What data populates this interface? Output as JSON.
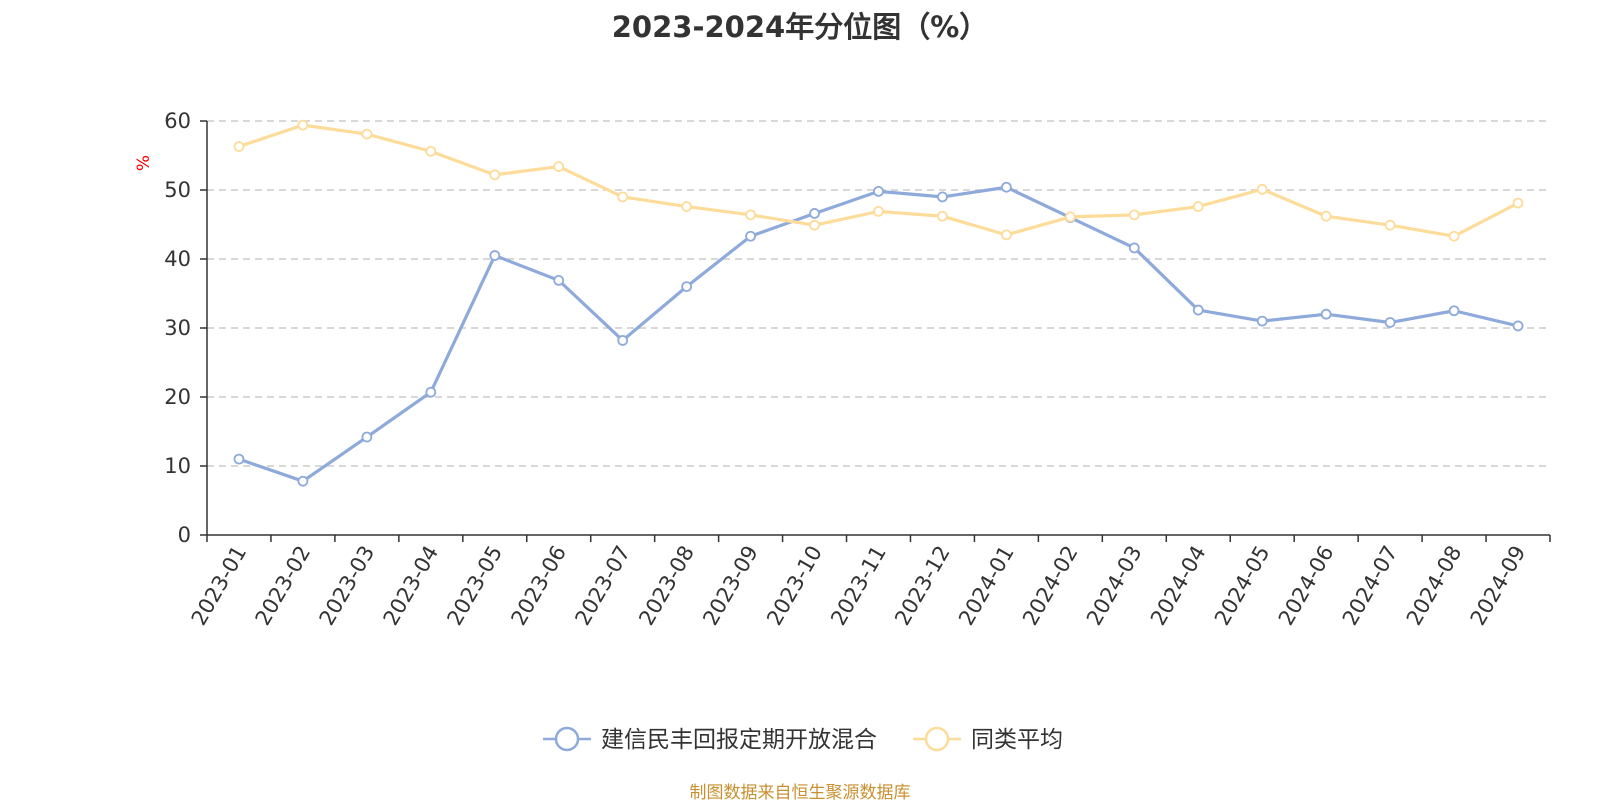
{
  "chart_data": {
    "type": "line",
    "title": "2023-2024年分位图（%）",
    "ylabel": "%",
    "xlabel": "",
    "ylim": [
      0,
      60
    ],
    "yticks": [
      0,
      10,
      20,
      30,
      40,
      50,
      60
    ],
    "grid": "horizontal-dashed",
    "legend_position": "bottom-center",
    "categories": [
      "2023-01",
      "2023-02",
      "2023-03",
      "2023-04",
      "2023-05",
      "2023-06",
      "2023-07",
      "2023-08",
      "2023-09",
      "2023-10",
      "2023-11",
      "2023-12",
      "2024-01",
      "2024-02",
      "2024-03",
      "2024-04",
      "2024-05",
      "2024-06",
      "2024-07",
      "2024-08",
      "2024-09"
    ],
    "series": [
      {
        "name": "建信民丰回报定期开放混合",
        "color": "#8eaadb",
        "values": [
          11.0,
          7.8,
          14.2,
          20.7,
          40.5,
          36.9,
          28.2,
          36.0,
          43.3,
          46.6,
          49.8,
          49.0,
          50.4,
          46.0,
          41.6,
          32.6,
          31.0,
          32.0,
          30.8,
          32.5,
          30.3
        ]
      },
      {
        "name": "同类平均",
        "color": "#fddc9a",
        "values": [
          56.3,
          59.4,
          58.1,
          55.6,
          52.2,
          53.4,
          49.0,
          47.6,
          46.4,
          44.9,
          46.9,
          46.2,
          43.5,
          46.1,
          46.4,
          47.6,
          50.1,
          46.2,
          44.9,
          43.3,
          48.1
        ]
      }
    ]
  },
  "footer": {
    "source": "制图数据来自恒生聚源数据库"
  }
}
